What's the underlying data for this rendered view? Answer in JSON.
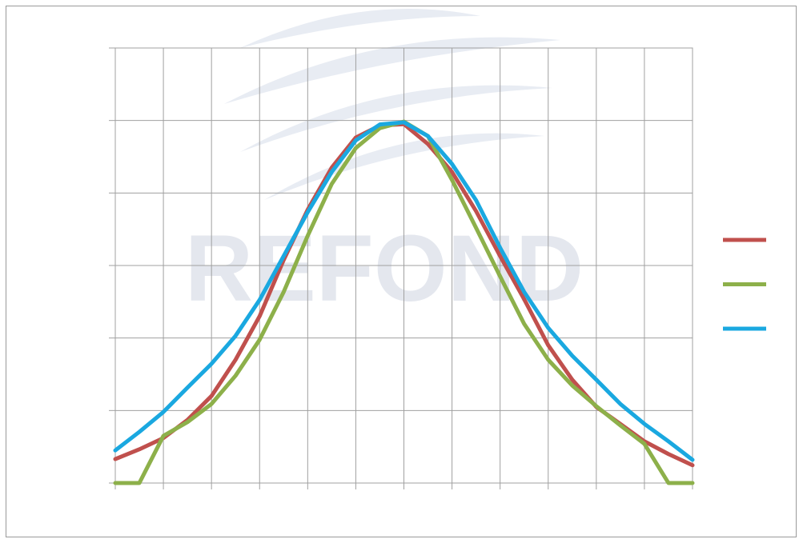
{
  "chart_data": {
    "type": "line",
    "watermark": "REFOND",
    "x": [
      -90,
      -82.5,
      -75,
      -67.5,
      -60,
      -52.5,
      -45,
      -37.5,
      -30,
      -22.5,
      -15,
      -7.5,
      0,
      7.5,
      15,
      22.5,
      30,
      37.5,
      45,
      52.5,
      60,
      67.5,
      75,
      82.5,
      90
    ],
    "series": [
      {
        "color": "#c0504d",
        "values": [
          6.6,
          9.3,
          12.4,
          17.4,
          24,
          34,
          46,
          61.5,
          75.4,
          87,
          95.3,
          98.6,
          99,
          93.5,
          85.8,
          75,
          62.6,
          50.7,
          38,
          28.5,
          21,
          16.3,
          11.5,
          8,
          4.9
        ]
      },
      {
        "color": "#8db04a",
        "values": [
          0,
          0,
          13,
          16.8,
          21.8,
          29.6,
          39.5,
          52.7,
          68.2,
          82.5,
          92.4,
          97.9,
          99.7,
          95.7,
          83.6,
          70.4,
          57,
          43.9,
          34,
          26.9,
          21.2,
          15.9,
          10.8,
          0,
          0
        ]
      },
      {
        "color": "#1aa8e0",
        "values": [
          9,
          14.1,
          19.6,
          26.3,
          32.9,
          40.6,
          50.5,
          62.6,
          74.7,
          85.8,
          94.5,
          98.9,
          99.5,
          95.7,
          88,
          78,
          64.9,
          52.7,
          42.8,
          35.1,
          28.5,
          21.8,
          16.3,
          11.5,
          6.4
        ]
      }
    ],
    "xlim": [
      -90,
      90
    ],
    "xticks": [
      -90,
      -75,
      -60,
      -45,
      -30,
      -15,
      0,
      15,
      30,
      45,
      60,
      75,
      90
    ],
    "ylim": [
      0,
      120
    ],
    "yticks": [
      0,
      20,
      40,
      60,
      80,
      100,
      120
    ],
    "grid": true
  }
}
